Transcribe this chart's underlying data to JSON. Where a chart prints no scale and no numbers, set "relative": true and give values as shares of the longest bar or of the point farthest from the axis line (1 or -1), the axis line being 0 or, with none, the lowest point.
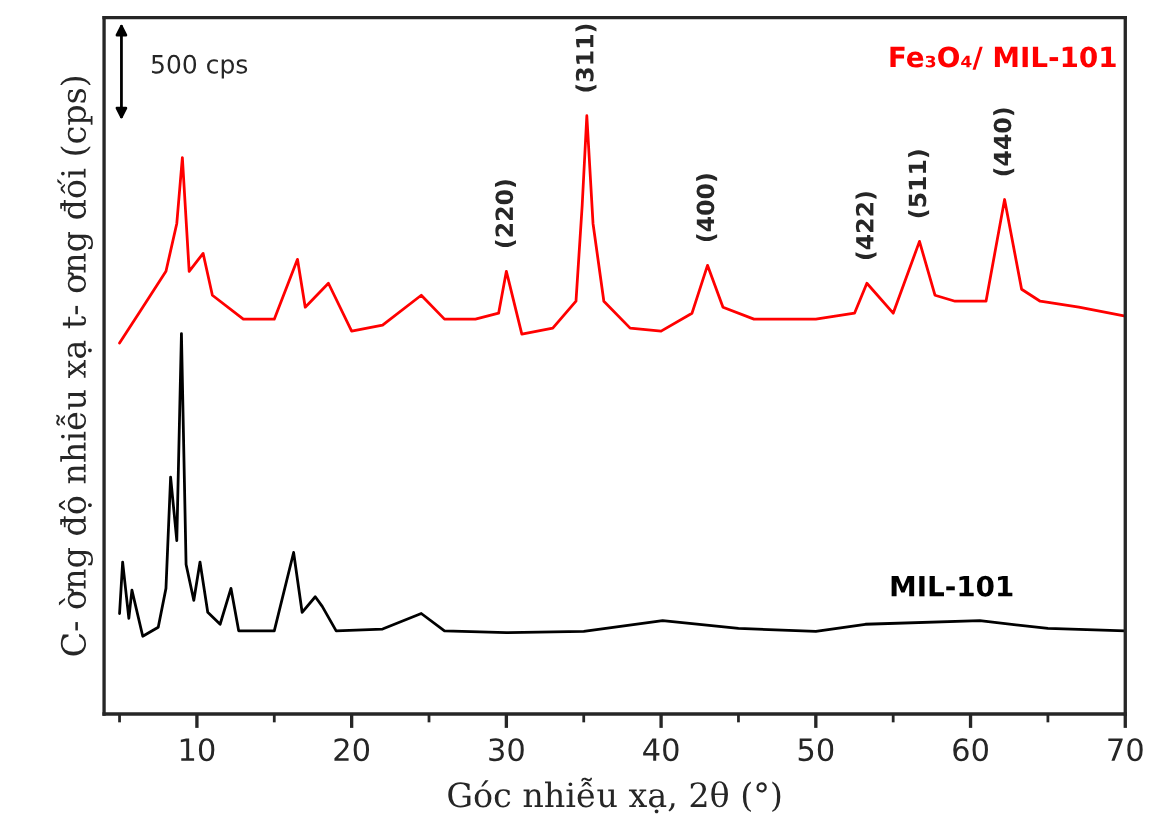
{
  "chart_data": {
    "type": "line",
    "relative": true,
    "xlabel": "Góc nhiễu xạ, 2θ (°)",
    "ylabel": "C- ờng độ nhiễu xạ t- ơng đối (cps)",
    "xlim": [
      4,
      70
    ],
    "xticks": [
      10,
      20,
      30,
      40,
      50,
      60,
      70
    ],
    "series": [
      {
        "name": "Fe₃O₄/ MIL-101",
        "color": "#ff0000",
        "x": [
          5,
          6.5,
          8,
          8.7,
          9.06,
          9.5,
          10.4,
          11,
          13,
          15,
          16.5,
          17,
          18.5,
          20,
          22,
          24.5,
          26,
          28,
          29.5,
          30.0,
          31,
          33,
          34.5,
          34.9,
          35.2,
          35.6,
          36.3,
          38,
          40,
          42,
          43.0,
          44,
          46,
          50,
          52.5,
          53.3,
          55,
          56.7,
          57.7,
          59,
          61,
          62.2,
          63.3,
          64.5,
          67,
          70
        ],
        "values": [
          0.62,
          0.68,
          0.74,
          0.82,
          0.93,
          0.74,
          0.77,
          0.7,
          0.66,
          0.66,
          0.76,
          0.68,
          0.72,
          0.64,
          0.65,
          0.7,
          0.66,
          0.66,
          0.67,
          0.74,
          0.635,
          0.645,
          0.69,
          0.85,
          1.0,
          0.82,
          0.69,
          0.645,
          0.64,
          0.67,
          0.75,
          0.68,
          0.66,
          0.66,
          0.67,
          0.72,
          0.67,
          0.79,
          0.7,
          0.69,
          0.69,
          0.86,
          0.71,
          0.69,
          0.68,
          0.665
        ]
      },
      {
        "name": "MIL-101",
        "color": "#000000",
        "x": [
          5,
          5.2,
          5.6,
          5.8,
          6.5,
          7.5,
          8.0,
          8.3,
          8.7,
          9.0,
          9.3,
          9.8,
          10.2,
          10.7,
          11.5,
          12.2,
          12.7,
          15,
          16.25,
          16.8,
          17.65,
          18.1,
          19,
          22,
          24.5,
          26,
          30,
          35,
          40.1,
          45,
          50,
          53.2,
          60.6,
          65,
          70
        ],
        "values": [
          0.168,
          0.254,
          0.16,
          0.207,
          0.13,
          0.145,
          0.21,
          0.396,
          0.29,
          0.636,
          0.25,
          0.19,
          0.254,
          0.17,
          0.15,
          0.21,
          0.139,
          0.139,
          0.27,
          0.17,
          0.196,
          0.18,
          0.139,
          0.142,
          0.168,
          0.139,
          0.136,
          0.138,
          0.156,
          0.143,
          0.138,
          0.15,
          0.156,
          0.143,
          0.139
        ]
      }
    ],
    "annotations": [
      "500 cps",
      {
        "text": "(220)",
        "x": 30.0,
        "y": 0.74
      },
      {
        "text": "(311)",
        "x": 35.2,
        "y": 1.0
      },
      {
        "text": "(400)",
        "x": 43.0,
        "y": 0.75
      },
      {
        "text": "(422)",
        "x": 53.3,
        "y": 0.72
      },
      {
        "text": "(511)",
        "x": 56.7,
        "y": 0.79
      },
      {
        "text": "(440)",
        "x": 62.2,
        "y": 0.86
      }
    ]
  }
}
